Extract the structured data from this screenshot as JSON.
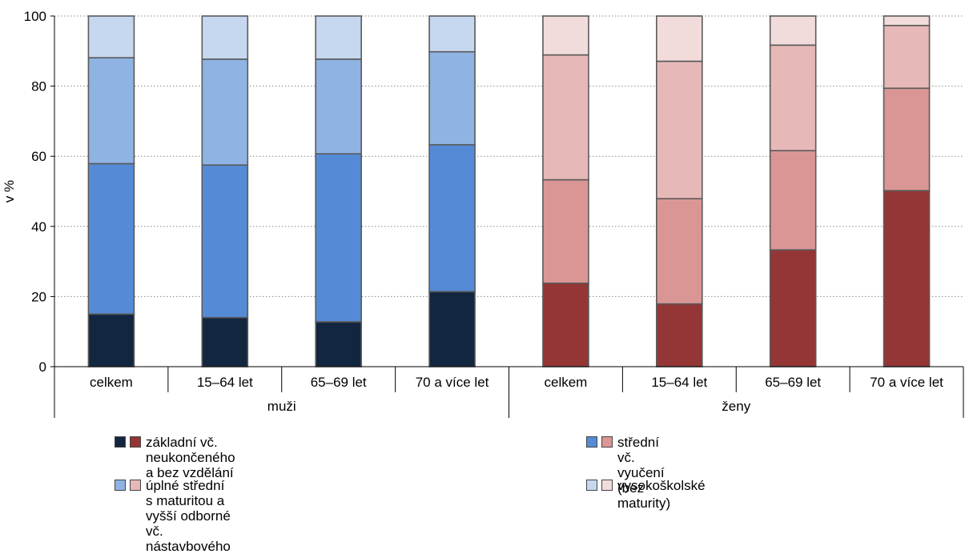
{
  "chart_data": {
    "type": "bar",
    "stacked": true,
    "ylabel": "v %",
    "ylim": [
      0,
      100
    ],
    "yticks": [
      0,
      20,
      40,
      60,
      80,
      100
    ],
    "grid": true,
    "groups": [
      {
        "label": "muži",
        "categories": [
          "celkem",
          "15–64 let",
          "65–69 let",
          "70 a více let"
        ],
        "colors": [
          "#13263f",
          "#558bd6",
          "#8fb3e3",
          "#c6d8ef"
        ],
        "series": [
          {
            "name": "základní vč. neukončeného a bez vzdělání",
            "values": [
              15,
              14,
              12.8,
              21.4
            ]
          },
          {
            "name": "střední vč. vyučení (bez maturity)",
            "values": [
              42.9,
              43.5,
              47.9,
              41.9
            ]
          },
          {
            "name": "úplné střední s maturitou a vyšší odborné vč. nástavbového",
            "values": [
              30.2,
              30.2,
              27,
              26.5
            ]
          },
          {
            "name": "vysokoškolské",
            "values": [
              11.9,
              12.3,
              12.3,
              10.2
            ]
          }
        ]
      },
      {
        "label": "ženy",
        "categories": [
          "celkem",
          "15–64 let",
          "65–69 let",
          "70 a více let"
        ],
        "colors": [
          "#943635",
          "#da9694",
          "#e6b9b8",
          "#f2dcdb"
        ],
        "series": [
          {
            "name": "základní vč. neukončeného a bez vzdělání",
            "values": [
              23.8,
              17.9,
              33.3,
              50.2
            ]
          },
          {
            "name": "střední vč. vyučení (bez maturity)",
            "values": [
              29.5,
              30,
              28.3,
              29.2
            ]
          },
          {
            "name": "úplné střední s maturitou a vyšší odborné vč. nástavbového",
            "values": [
              35.6,
              39.2,
              30.1,
              17.9
            ]
          },
          {
            "name": "vysokoškolské",
            "values": [
              11.1,
              12.9,
              8.3,
              2.7
            ]
          }
        ]
      }
    ],
    "legend": {
      "placement": "bottom",
      "items": [
        {
          "label": "základní vč. neukončeného a bez vzdělání",
          "colors": [
            "#13263f",
            "#943635"
          ]
        },
        {
          "label": "střední vč. vyučení (bez maturity)",
          "colors": [
            "#558bd6",
            "#da9694"
          ]
        },
        {
          "label": "úplné střední s maturitou a vyšší odborné\nvč. nástavbového",
          "colors": [
            "#8fb3e3",
            "#e6b9b8"
          ]
        },
        {
          "label": "vysokoškolské",
          "colors": [
            "#c6d8ef",
            "#f2dcdb"
          ]
        }
      ]
    }
  }
}
